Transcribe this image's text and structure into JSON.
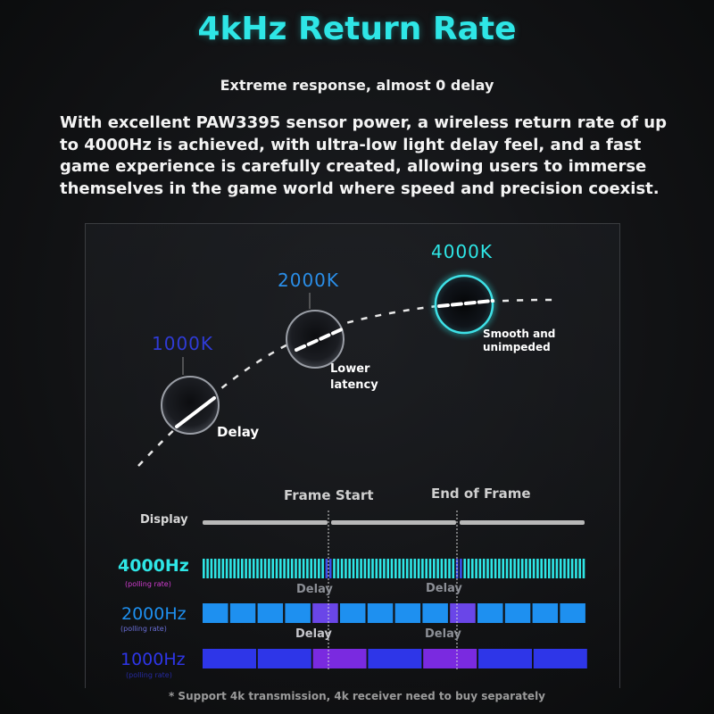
{
  "header": {
    "title": "4kHz Return Rate",
    "subtitle": "Extreme response, almost 0 delay",
    "description": "With excellent PAW3395 sensor power, a wireless return rate of up to 4000Hz is achieved, with ultra-low light delay feel, and a fast game experience is carefully created, allowing users to immerse themselves in the game world where speed and precision coexist."
  },
  "curve": {
    "points": [
      {
        "label": "1000K",
        "note": "Delay",
        "color": "#2f3bd6"
      },
      {
        "label": "2000K",
        "note_lines": [
          "Lower",
          "latency"
        ],
        "color": "#2a8ee8"
      },
      {
        "label": "4000K",
        "note_lines": [
          "Smooth and",
          "unimpeded"
        ],
        "color": "#2ee6e6"
      }
    ]
  },
  "timing": {
    "frame_start": "Frame Start",
    "end_of_frame": "End of Frame",
    "display_label": "Display",
    "rows": [
      {
        "label": "4000Hz",
        "sub": "(polling rate)",
        "color": "#2ee6e6",
        "level": 4000
      },
      {
        "label": "2000Hz",
        "sub": "(polling rate)",
        "color": "#1e90f0",
        "level": 2000
      },
      {
        "label": "1000Hz",
        "sub": "(polling rate)",
        "color": "#2e36e8",
        "level": 1000
      }
    ],
    "delay_label": "Delay"
  },
  "footnote": "* Support 4k transmission, 4k receiver need to buy separately"
}
